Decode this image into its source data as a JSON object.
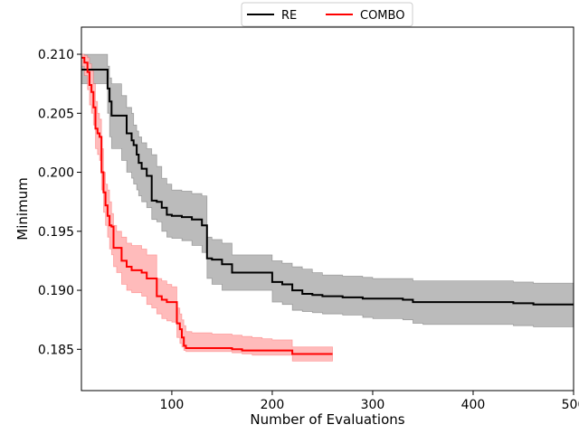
{
  "chart_data": {
    "type": "line",
    "title": "",
    "xlabel": "Number of Evaluations",
    "ylabel": "Minimum",
    "xlim": [
      10,
      500
    ],
    "ylim": [
      0.1815,
      0.2123
    ],
    "xticks": [
      100,
      200,
      300,
      400,
      500
    ],
    "xtick_labels": [
      "100",
      "200",
      "300",
      "400",
      "500"
    ],
    "yticks": [
      0.185,
      0.19,
      0.195,
      0.2,
      0.205,
      0.21
    ],
    "ytick_labels": [
      "0.185",
      "0.190",
      "0.195",
      "0.200",
      "0.205",
      "0.210"
    ],
    "grid": false,
    "legend": {
      "position": "top-center-outside",
      "ncol": 2
    },
    "series": [
      {
        "name": "RE",
        "color": "#000000",
        "band_color": "#bbbbbb",
        "x": [
          10,
          32,
          36,
          38,
          40,
          50,
          55,
          60,
          62,
          65,
          67,
          70,
          75,
          80,
          85,
          90,
          95,
          100,
          110,
          120,
          130,
          135,
          140,
          150,
          160,
          170,
          190,
          200,
          210,
          220,
          230,
          240,
          250,
          270,
          290,
          300,
          330,
          340,
          350,
          400,
          440,
          460,
          500
        ],
        "y": [
          0.2087,
          0.2087,
          0.2071,
          0.206,
          0.2048,
          0.2048,
          0.2033,
          0.2027,
          0.2023,
          0.2015,
          0.2008,
          0.2003,
          0.1997,
          0.1976,
          0.1975,
          0.197,
          0.1964,
          0.1963,
          0.1962,
          0.196,
          0.1955,
          0.1927,
          0.1926,
          0.1922,
          0.1915,
          0.1915,
          0.1915,
          0.1907,
          0.1905,
          0.19,
          0.1897,
          0.1896,
          0.1895,
          0.1894,
          0.1893,
          0.1893,
          0.1892,
          0.189,
          0.189,
          0.189,
          0.1889,
          0.1888,
          0.1888
        ],
        "upper": [
          0.21,
          0.21,
          0.209,
          0.208,
          0.2075,
          0.2065,
          0.2055,
          0.205,
          0.204,
          0.2035,
          0.203,
          0.2025,
          0.202,
          0.2015,
          0.2005,
          0.1995,
          0.199,
          0.1985,
          0.1984,
          0.1982,
          0.198,
          0.1945,
          0.1943,
          0.194,
          0.193,
          0.193,
          0.193,
          0.1925,
          0.1923,
          0.192,
          0.1918,
          0.1915,
          0.1913,
          0.1912,
          0.1911,
          0.191,
          0.191,
          0.1908,
          0.1908,
          0.1908,
          0.1907,
          0.1906,
          0.1906
        ],
        "lower": [
          0.2075,
          0.2075,
          0.205,
          0.203,
          0.202,
          0.201,
          0.2,
          0.1995,
          0.199,
          0.1985,
          0.198,
          0.1975,
          0.197,
          0.196,
          0.1958,
          0.195,
          0.1945,
          0.1944,
          0.1942,
          0.1938,
          0.1932,
          0.191,
          0.1905,
          0.19,
          0.19,
          0.19,
          0.19,
          0.189,
          0.1888,
          0.1883,
          0.1882,
          0.1881,
          0.188,
          0.1879,
          0.1877,
          0.1876,
          0.1875,
          0.1872,
          0.1871,
          0.1871,
          0.187,
          0.1869,
          0.1869
        ]
      },
      {
        "name": "COMBO",
        "color": "#ff0000",
        "band_color": "#ffbbbb",
        "x": [
          10,
          13,
          16,
          18,
          20,
          22,
          24,
          26,
          28,
          30,
          32,
          34,
          36,
          38,
          40,
          42,
          45,
          50,
          55,
          60,
          62,
          65,
          70,
          75,
          80,
          85,
          90,
          95,
          100,
          105,
          108,
          110,
          112,
          114,
          120,
          140,
          160,
          170,
          180,
          190,
          200,
          210,
          220,
          240,
          260
        ],
        "y": [
          0.2097,
          0.2093,
          0.2085,
          0.2074,
          0.2068,
          0.2055,
          0.2037,
          0.2033,
          0.203,
          0.2,
          0.1983,
          0.1972,
          0.1963,
          0.1955,
          0.1954,
          0.1936,
          0.1936,
          0.1925,
          0.192,
          0.1917,
          0.1917,
          0.1917,
          0.1915,
          0.191,
          0.191,
          0.1895,
          0.1892,
          0.189,
          0.189,
          0.1872,
          0.1867,
          0.186,
          0.1853,
          0.1851,
          0.1851,
          0.1851,
          0.185,
          0.1849,
          0.1849,
          0.1849,
          0.1849,
          0.1849,
          0.1846,
          0.1846,
          0.1846
        ],
        "upper": [
          0.21,
          0.2099,
          0.2097,
          0.2092,
          0.2086,
          0.2075,
          0.206,
          0.205,
          0.2045,
          0.202,
          0.2,
          0.199,
          0.1985,
          0.1975,
          0.1965,
          0.1955,
          0.195,
          0.1945,
          0.194,
          0.1938,
          0.1938,
          0.1938,
          0.1935,
          0.193,
          0.193,
          0.191,
          0.1908,
          0.1905,
          0.1903,
          0.1885,
          0.188,
          0.1875,
          0.187,
          0.1865,
          0.1864,
          0.1863,
          0.1862,
          0.1861,
          0.186,
          0.1859,
          0.1858,
          0.1858,
          0.1852,
          0.1852,
          0.1852
        ],
        "lower": [
          0.209,
          0.2082,
          0.207,
          0.2057,
          0.205,
          0.204,
          0.202,
          0.2015,
          0.201,
          0.1985,
          0.1966,
          0.1955,
          0.1945,
          0.1935,
          0.193,
          0.192,
          0.1915,
          0.1905,
          0.19,
          0.1898,
          0.1898,
          0.1898,
          0.1895,
          0.1888,
          0.1885,
          0.188,
          0.1876,
          0.1874,
          0.1873,
          0.186,
          0.1855,
          0.1852,
          0.1849,
          0.1848,
          0.1848,
          0.1848,
          0.1847,
          0.1846,
          0.1845,
          0.1845,
          0.1845,
          0.1845,
          0.184,
          0.184,
          0.184
        ]
      }
    ]
  }
}
